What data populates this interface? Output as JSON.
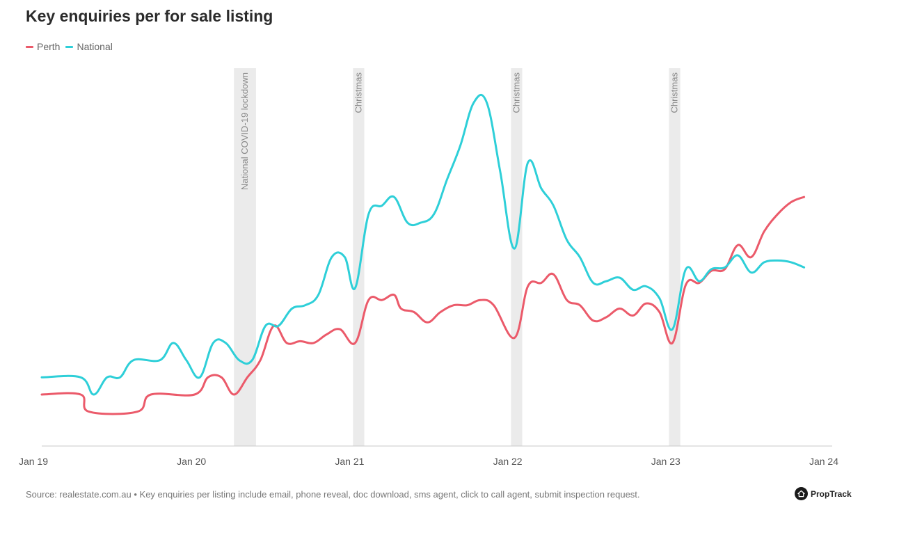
{
  "footer": {
    "source_text": "Source: realestate.com.au • Key enquiries per listing include email, phone reveal, doc download, sms agent, click to call agent, submit inspection request.",
    "brand": "PropTrack"
  },
  "chart_data": {
    "type": "line",
    "title": "Key enquiries per for sale listing",
    "xlabel": "",
    "ylabel": "",
    "x_axis": {
      "type": "date",
      "range": [
        "2019-01-01",
        "2024-01-01"
      ],
      "tick_labels": [
        "Jan 19",
        "Jan 20",
        "Jan 21",
        "Jan 22",
        "Jan 23",
        "Jan 24"
      ]
    },
    "y_axis": {
      "tick_labels": [],
      "ylim": [
        0,
        22
      ],
      "note": "no y-axis values shown"
    },
    "grid": false,
    "legend": {
      "placement": "top-left"
    },
    "colors": {
      "perth": "#eb5a6a",
      "national": "#2ecfd8",
      "shade": "#ebebeb"
    },
    "annotations": [
      {
        "label": "National COVID-19 lockdown",
        "start": "2020-03-20",
        "end": "2020-05-10"
      },
      {
        "label": "Christmas",
        "start": "2020-12-20",
        "end": "2021-01-15"
      },
      {
        "label": "Christmas",
        "start": "2021-12-20",
        "end": "2022-01-15"
      },
      {
        "label": "Christmas",
        "start": "2022-12-20",
        "end": "2023-01-15"
      }
    ],
    "series": [
      {
        "name": "Perth",
        "color": "#eb5a6a",
        "points": [
          [
            "2019-01-01",
            3.0
          ],
          [
            "2019-04-01",
            3.0
          ],
          [
            "2019-04-20",
            2.0
          ],
          [
            "2019-08-10",
            2.0
          ],
          [
            "2019-09-10",
            3.0
          ],
          [
            "2019-12-20",
            3.0
          ],
          [
            "2020-01-20",
            4.0
          ],
          [
            "2020-02-20",
            4.0
          ],
          [
            "2020-03-20",
            3.0
          ],
          [
            "2020-04-20",
            4.0
          ],
          [
            "2020-05-20",
            5.0
          ],
          [
            "2020-06-20",
            7.0
          ],
          [
            "2020-07-20",
            6.0
          ],
          [
            "2020-08-20",
            6.1
          ],
          [
            "2020-09-20",
            6.0
          ],
          [
            "2020-10-20",
            6.5
          ],
          [
            "2020-11-20",
            6.8
          ],
          [
            "2020-12-25",
            6.0
          ],
          [
            "2021-01-25",
            8.5
          ],
          [
            "2021-02-25",
            8.5
          ],
          [
            "2021-03-25",
            8.8
          ],
          [
            "2021-04-10",
            8.0
          ],
          [
            "2021-05-10",
            7.8
          ],
          [
            "2021-06-10",
            7.2
          ],
          [
            "2021-07-10",
            7.8
          ],
          [
            "2021-08-10",
            8.2
          ],
          [
            "2021-09-10",
            8.2
          ],
          [
            "2021-10-10",
            8.5
          ],
          [
            "2021-11-10",
            8.2
          ],
          [
            "2021-12-28",
            6.3
          ],
          [
            "2022-01-28",
            9.3
          ],
          [
            "2022-02-28",
            9.5
          ],
          [
            "2022-03-28",
            10.0
          ],
          [
            "2022-04-28",
            8.5
          ],
          [
            "2022-05-28",
            8.2
          ],
          [
            "2022-06-28",
            7.3
          ],
          [
            "2022-07-28",
            7.5
          ],
          [
            "2022-08-28",
            8.0
          ],
          [
            "2022-09-28",
            7.6
          ],
          [
            "2022-10-28",
            8.3
          ],
          [
            "2022-11-28",
            7.8
          ],
          [
            "2022-12-28",
            6.0
          ],
          [
            "2023-01-28",
            9.4
          ],
          [
            "2023-02-28",
            9.5
          ],
          [
            "2023-03-28",
            10.2
          ],
          [
            "2023-04-28",
            10.3
          ],
          [
            "2023-05-28",
            11.7
          ],
          [
            "2023-06-28",
            11.0
          ],
          [
            "2023-07-28",
            12.5
          ],
          [
            "2023-08-28",
            13.5
          ],
          [
            "2023-09-28",
            14.2
          ],
          [
            "2023-10-28",
            14.5
          ]
        ]
      },
      {
        "name": "National",
        "color": "#2ecfd8",
        "points": [
          [
            "2019-01-01",
            4.0
          ],
          [
            "2019-04-01",
            4.0
          ],
          [
            "2019-05-01",
            3.0
          ],
          [
            "2019-06-01",
            4.0
          ],
          [
            "2019-07-01",
            4.0
          ],
          [
            "2019-08-01",
            5.0
          ],
          [
            "2019-10-01",
            5.0
          ],
          [
            "2019-11-01",
            6.0
          ],
          [
            "2019-12-01",
            5.0
          ],
          [
            "2020-01-01",
            4.0
          ],
          [
            "2020-02-01",
            6.0
          ],
          [
            "2020-03-01",
            6.0
          ],
          [
            "2020-04-01",
            5.0
          ],
          [
            "2020-05-01",
            5.0
          ],
          [
            "2020-06-01",
            7.0
          ],
          [
            "2020-07-01",
            7.0
          ],
          [
            "2020-08-01",
            8.0
          ],
          [
            "2020-09-01",
            8.2
          ],
          [
            "2020-10-01",
            8.8
          ],
          [
            "2020-11-01",
            11.0
          ],
          [
            "2020-12-01",
            11.0
          ],
          [
            "2020-12-25",
            9.2
          ],
          [
            "2021-01-25",
            13.5
          ],
          [
            "2021-02-25",
            14.0
          ],
          [
            "2021-03-25",
            14.5
          ],
          [
            "2021-04-25",
            13.0
          ],
          [
            "2021-05-25",
            13.0
          ],
          [
            "2021-06-25",
            13.5
          ],
          [
            "2021-07-25",
            15.5
          ],
          [
            "2021-08-25",
            17.5
          ],
          [
            "2021-09-25",
            20.0
          ],
          [
            "2021-10-25",
            20.0
          ],
          [
            "2021-11-25",
            16.0
          ],
          [
            "2021-12-28",
            11.5
          ],
          [
            "2022-01-28",
            16.5
          ],
          [
            "2022-02-28",
            15.0
          ],
          [
            "2022-03-28",
            14.0
          ],
          [
            "2022-04-28",
            12.0
          ],
          [
            "2022-05-28",
            11.0
          ],
          [
            "2022-06-28",
            9.5
          ],
          [
            "2022-07-28",
            9.6
          ],
          [
            "2022-08-28",
            9.8
          ],
          [
            "2022-09-28",
            9.1
          ],
          [
            "2022-10-28",
            9.3
          ],
          [
            "2022-11-28",
            8.6
          ],
          [
            "2022-12-28",
            6.8
          ],
          [
            "2023-01-28",
            10.3
          ],
          [
            "2023-02-28",
            9.6
          ],
          [
            "2023-03-28",
            10.3
          ],
          [
            "2023-04-28",
            10.4
          ],
          [
            "2023-05-28",
            11.1
          ],
          [
            "2023-06-28",
            10.1
          ],
          [
            "2023-07-28",
            10.7
          ],
          [
            "2023-08-28",
            10.8
          ],
          [
            "2023-09-28",
            10.7
          ],
          [
            "2023-10-28",
            10.4
          ]
        ]
      }
    ]
  }
}
